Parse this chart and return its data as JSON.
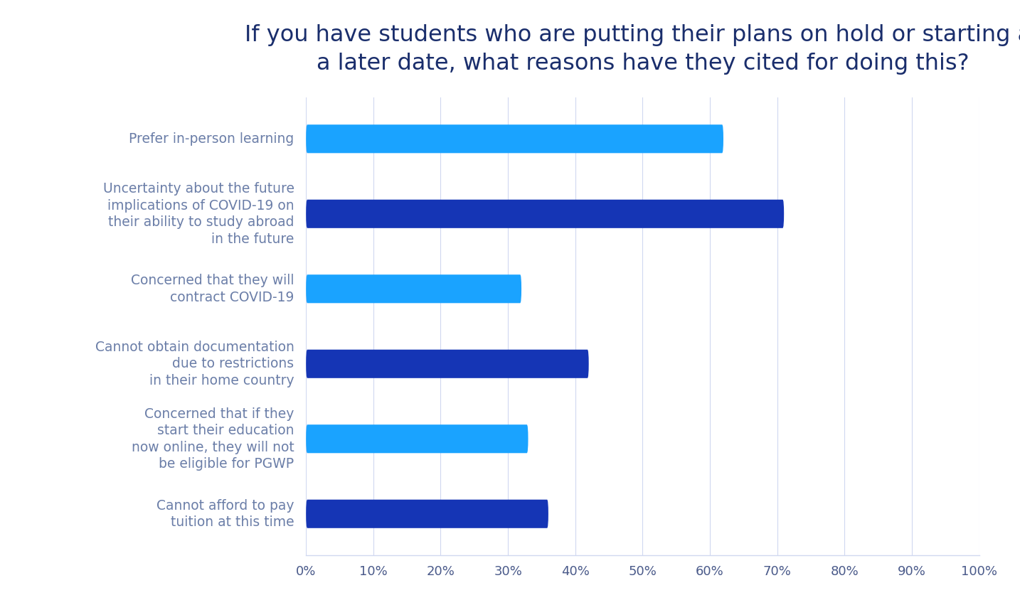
{
  "title": "If you have students who are putting their plans on hold or starting at\na later date, what reasons have they cited for doing this?",
  "categories": [
    "Cannot afford to pay\ntuition at this time",
    "Concerned that if they\nstart their education\nnow online, they will not\nbe eligible for PGWP",
    "Cannot obtain documentation\ndue to restrictions\nin their home country",
    "Concerned that they will\ncontract COVID-19",
    "Uncertainty about the future\nimplications of COVID-19 on\ntheir ability to study abroad\nin the future",
    "Prefer in-person learning"
  ],
  "values": [
    36,
    33,
    42,
    32,
    71,
    62
  ],
  "bar_colors": [
    "#1535b5",
    "#1aa3ff",
    "#1535b5",
    "#1aa3ff",
    "#1535b5",
    "#1aa3ff"
  ],
  "xlim": [
    0,
    100
  ],
  "xtick_values": [
    0,
    10,
    20,
    30,
    40,
    50,
    60,
    70,
    80,
    90,
    100
  ],
  "xtick_labels": [
    "0%",
    "10%",
    "20%",
    "30%",
    "40%",
    "50%",
    "60%",
    "70%",
    "80%",
    "90%",
    "100%"
  ],
  "title_fontsize": 23,
  "label_fontsize": 13.5,
  "tick_fontsize": 13,
  "title_color": "#1a2e6c",
  "label_color": "#6b7ea8",
  "tick_color": "#4a5a8a",
  "background_color": "#ffffff",
  "bar_height": 0.38,
  "grid_color": "#d0d8f0"
}
